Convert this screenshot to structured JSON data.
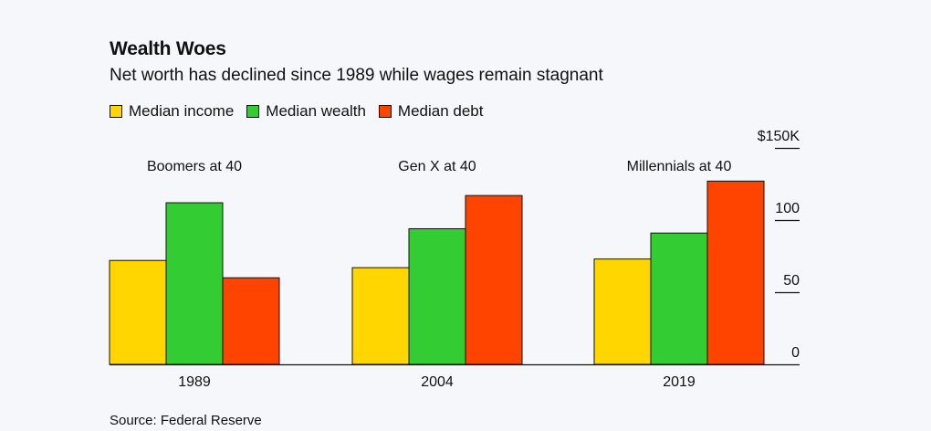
{
  "title": "Wealth Woes",
  "subtitle": "Net worth has declined since 1989 while wages remain stagnant",
  "source": "Source: Federal Reserve",
  "chart_data": {
    "type": "bar",
    "categories": [
      "1989",
      "2004",
      "2019"
    ],
    "group_labels": [
      "Boomers at 40",
      "Gen X at 40",
      "Millennials at 40"
    ],
    "series": [
      {
        "name": "Median income",
        "color": "#ffd600",
        "values": [
          72,
          67,
          73
        ]
      },
      {
        "name": "Median wealth",
        "color": "#33cc33",
        "values": [
          112,
          94,
          91
        ]
      },
      {
        "name": "Median debt",
        "color": "#ff4400",
        "values": [
          60,
          117,
          127
        ]
      }
    ],
    "ylim": [
      0,
      150
    ],
    "yticks": [
      {
        "value": 0,
        "label": "0"
      },
      {
        "value": 50,
        "label": "50"
      },
      {
        "value": 100,
        "label": "100"
      },
      {
        "value": 150,
        "label": "$150K"
      }
    ],
    "xlabel": "",
    "ylabel": "",
    "grid": false,
    "legend_position": "top-left"
  }
}
